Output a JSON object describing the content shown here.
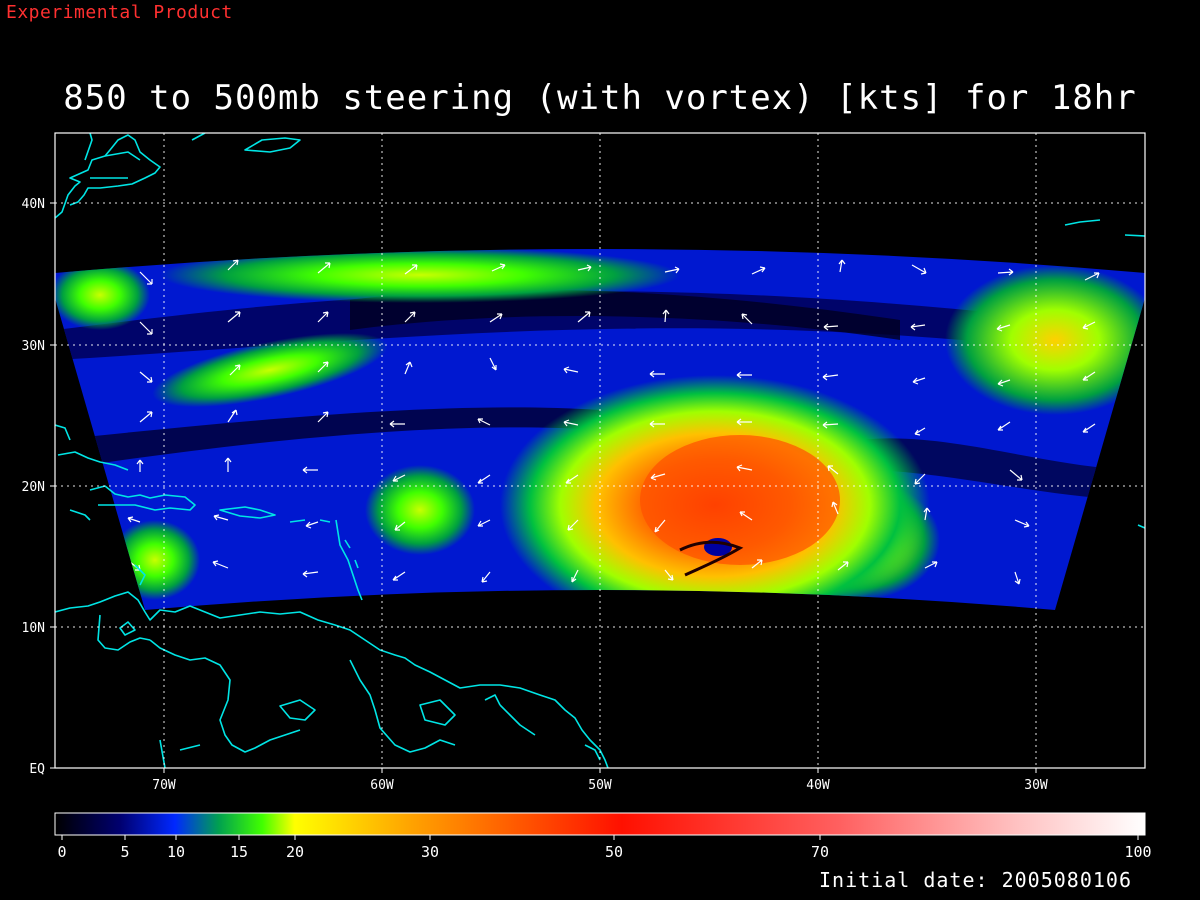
{
  "header": {
    "product_label": "Experimental Product",
    "title": "850 to 500mb steering (with vortex) [kts] for 18hr"
  },
  "footer": {
    "initial_date": "Initial date: 2005080106"
  },
  "map": {
    "lon_range": [
      -75,
      -25
    ],
    "lat_range": [
      0,
      45
    ],
    "lat_labels": [
      "EQ",
      "10N",
      "20N",
      "30N",
      "40N"
    ],
    "lon_labels": [
      "70W",
      "60W",
      "50W",
      "40W",
      "30W"
    ],
    "coastline_color": "#00e5e5",
    "grid_color": "#ffffff",
    "vortex_center": {
      "lon": -45.5,
      "lat": 15.5
    }
  },
  "colorbar": {
    "labels": [
      "0",
      "5",
      "10",
      "15",
      "20",
      "30",
      "50",
      "70",
      "100"
    ],
    "stops": [
      "#000000",
      "#000070",
      "#0028ff",
      "#00a050",
      "#40ff00",
      "#ffff00",
      "#ffa000",
      "#ff1000",
      "#ff6060",
      "#ffc0c0",
      "#ffffff"
    ]
  },
  "colors": {
    "product_label": "#ff3030",
    "background": "#000000",
    "text": "#ffffff"
  }
}
